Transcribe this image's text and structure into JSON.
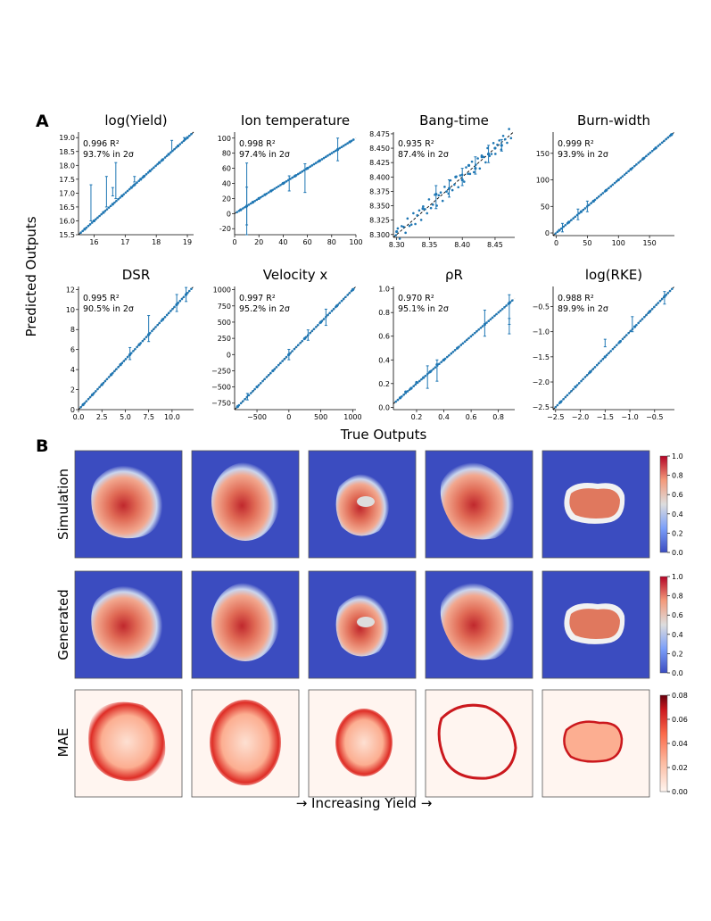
{
  "panel_labels": [
    "A",
    "B"
  ],
  "section_a": {
    "ylabel": "Predicted Outputs",
    "xlabel": "True Outputs"
  },
  "section_b": {
    "xlabel": "→ Increasing Yield →",
    "row_labels": [
      "Simulation",
      "Generated",
      "MAE"
    ]
  },
  "colors": {
    "points": "#1f77b4",
    "diagonal": "#000000",
    "coolwarm_low": "#3b4cc0",
    "coolwarm_mid": "#dddddd",
    "coolwarm_high": "#b40426",
    "reds_low": "#fff5f0",
    "reds_high": "#67000d"
  },
  "chart_data": [
    {
      "type": "scatter",
      "title": "log(Yield)",
      "r2": "0.996 R²",
      "coverage": "93.7% in 2σ",
      "xlim": [
        15.5,
        19.2
      ],
      "ylim": [
        15.5,
        19.2
      ],
      "xticks": [
        "16",
        "17",
        "18",
        "19"
      ],
      "xtick_values": [
        16,
        17,
        18,
        19
      ],
      "yticks": [
        "15.5",
        "16.0",
        "16.5",
        "17.0",
        "17.5",
        "18.0",
        "18.5",
        "19.0"
      ],
      "ytick_values": [
        15.5,
        16,
        16.5,
        17,
        17.5,
        18,
        18.5,
        19
      ],
      "points": [
        [
          15.7,
          15.7
        ],
        [
          16.0,
          16.0
        ],
        [
          16.3,
          16.3
        ],
        [
          16.6,
          16.6
        ],
        [
          16.9,
          16.9
        ],
        [
          17.2,
          17.2
        ],
        [
          17.5,
          17.5
        ],
        [
          17.8,
          17.8
        ],
        [
          18.1,
          18.1
        ],
        [
          18.4,
          18.4
        ],
        [
          18.7,
          18.7
        ],
        [
          19.0,
          19.0
        ],
        [
          17.3,
          17.3
        ],
        [
          17.6,
          17.6
        ],
        [
          18.2,
          18.2
        ]
      ],
      "errorbars": [
        [
          15.9,
          16.0,
          17.3
        ],
        [
          16.4,
          16.5,
          17.6
        ],
        [
          16.7,
          16.8,
          18.1
        ],
        [
          16.6,
          16.9,
          17.2
        ],
        [
          17.3,
          17.4,
          17.6
        ],
        [
          18.5,
          18.5,
          18.9
        ],
        [
          18.9,
          18.9,
          19.0
        ]
      ]
    },
    {
      "type": "scatter",
      "title": "Ion temperature",
      "r2": "0.998 R²",
      "coverage": "97.4% in 2σ",
      "xlim": [
        0,
        100
      ],
      "ylim": [
        -28,
        108
      ],
      "xticks": [
        "0",
        "20",
        "40",
        "60",
        "80",
        "100"
      ],
      "xtick_values": [
        0,
        20,
        40,
        60,
        80,
        100
      ],
      "yticks": [
        "-20",
        "0",
        "20",
        "40",
        "60",
        "80",
        "100"
      ],
      "ytick_values": [
        -20,
        0,
        20,
        40,
        60,
        80,
        100
      ],
      "points": [
        [
          5,
          5
        ],
        [
          10,
          10
        ],
        [
          15,
          15
        ],
        [
          20,
          20
        ],
        [
          25,
          25
        ],
        [
          30,
          30
        ],
        [
          40,
          40
        ],
        [
          50,
          50
        ],
        [
          60,
          60
        ],
        [
          70,
          70
        ],
        [
          85,
          85
        ],
        [
          95,
          95
        ]
      ],
      "errorbars": [
        [
          10,
          -28,
          67
        ],
        [
          10,
          -15,
          35
        ],
        [
          45,
          30,
          50
        ],
        [
          58,
          28,
          66
        ],
        [
          85,
          70,
          100
        ]
      ]
    },
    {
      "type": "scatter",
      "title": "Bang-time",
      "r2": "0.935 R²",
      "coverage": "87.4% in 2σ",
      "xlim": [
        8.295,
        8.48
      ],
      "ylim": [
        8.295,
        8.478
      ],
      "xticks": [
        "8.30",
        "8.35",
        "8.40",
        "8.45"
      ],
      "xtick_values": [
        8.3,
        8.35,
        8.4,
        8.45
      ],
      "yticks": [
        "8.300",
        "8.325",
        "8.350",
        "8.375",
        "8.400",
        "8.425",
        "8.450",
        "8.475"
      ],
      "ytick_values": [
        8.3,
        8.325,
        8.35,
        8.375,
        8.4,
        8.425,
        8.45,
        8.475
      ],
      "points": [
        [
          8.3,
          8.305
        ],
        [
          8.34,
          8.345
        ],
        [
          8.36,
          8.37
        ],
        [
          8.38,
          8.38
        ],
        [
          8.39,
          8.4
        ],
        [
          8.4,
          8.395
        ],
        [
          8.41,
          8.42
        ],
        [
          8.42,
          8.415
        ],
        [
          8.43,
          8.435
        ],
        [
          8.44,
          8.44
        ],
        [
          8.45,
          8.45
        ],
        [
          8.46,
          8.455
        ]
      ],
      "errorbars": [
        [
          8.36,
          8.345,
          8.385
        ],
        [
          8.38,
          8.365,
          8.395
        ],
        [
          8.4,
          8.385,
          8.415
        ],
        [
          8.42,
          8.405,
          8.435
        ],
        [
          8.44,
          8.425,
          8.455
        ],
        [
          8.46,
          8.445,
          8.465
        ]
      ]
    },
    {
      "type": "scatter",
      "title": "Burn-width",
      "r2": "0.999 R²",
      "coverage": "93.9% in 2σ",
      "xlim": [
        -5,
        190
      ],
      "ylim": [
        -5,
        190
      ],
      "xticks": [
        "0",
        "50",
        "100",
        "150"
      ],
      "xtick_values": [
        0,
        50,
        100,
        150
      ],
      "yticks": [
        "0",
        "50",
        "100",
        "150"
      ],
      "ytick_values": [
        0,
        50,
        100,
        150
      ],
      "points": [
        [
          5,
          5
        ],
        [
          20,
          20
        ],
        [
          40,
          40
        ],
        [
          60,
          60
        ],
        [
          80,
          80
        ],
        [
          100,
          100
        ],
        [
          120,
          120
        ],
        [
          140,
          140
        ],
        [
          160,
          160
        ],
        [
          185,
          185
        ]
      ],
      "errorbars": [
        [
          35,
          25,
          45
        ],
        [
          50,
          40,
          60
        ],
        [
          10,
          2,
          18
        ]
      ]
    },
    {
      "type": "scatter",
      "title": "DSR",
      "r2": "0.995 R²",
      "coverage": "90.5% in 2σ",
      "xlim": [
        0,
        12.3
      ],
      "ylim": [
        0,
        12.3
      ],
      "xticks": [
        "0.0",
        "2.5",
        "5.0",
        "7.5",
        "10.0"
      ],
      "xtick_values": [
        0,
        2.5,
        5,
        7.5,
        10
      ],
      "yticks": [
        "0",
        "2",
        "4",
        "6",
        "8",
        "10",
        "12"
      ],
      "ytick_values": [
        0,
        2,
        4,
        6,
        8,
        10,
        12
      ],
      "points": [
        [
          0.5,
          0.5
        ],
        [
          1.5,
          1.5
        ],
        [
          2.5,
          2.5
        ],
        [
          3.5,
          3.5
        ],
        [
          4.5,
          4.5
        ],
        [
          5.5,
          5.5
        ],
        [
          6.5,
          6.5
        ],
        [
          7.5,
          7.5
        ],
        [
          9,
          9
        ],
        [
          10.5,
          10.5
        ],
        [
          11.5,
          11.5
        ]
      ],
      "errorbars": [
        [
          7.5,
          6.8,
          9.4
        ],
        [
          10.5,
          9.8,
          11.5
        ],
        [
          11.5,
          10.8,
          12.2
        ],
        [
          5.5,
          5.0,
          6.2
        ]
      ]
    },
    {
      "type": "scatter",
      "title": "Velocity x",
      "r2": "0.997 R²",
      "coverage": "95.2% in 2σ",
      "xlim": [
        -850,
        1050
      ],
      "ylim": [
        -850,
        1050
      ],
      "xticks": [
        "−500",
        "0",
        "500",
        "1000"
      ],
      "xtick_values": [
        -500,
        0,
        500,
        1000
      ],
      "yticks": [
        "−750",
        "−500",
        "−250",
        "0",
        "250",
        "500",
        "750",
        "1000"
      ],
      "ytick_values": [
        -750,
        -500,
        -250,
        0,
        250,
        500,
        750,
        1000
      ],
      "points": [
        [
          -800,
          -800
        ],
        [
          -500,
          -500
        ],
        [
          -250,
          -250
        ],
        [
          0,
          0
        ],
        [
          250,
          250
        ],
        [
          500,
          500
        ],
        [
          750,
          750
        ],
        [
          1000,
          1000
        ]
      ],
      "errorbars": [
        [
          -650,
          -700,
          -600
        ],
        [
          0,
          -80,
          80
        ],
        [
          300,
          220,
          380
        ],
        [
          580,
          450,
          700
        ]
      ]
    },
    {
      "type": "scatter",
      "title": "ρR",
      "r2": "0.970 R²",
      "coverage": "95.1% in 2σ",
      "xlim": [
        0.03,
        0.92
      ],
      "ylim": [
        -0.02,
        1.02
      ],
      "xticks": [
        "0.2",
        "0.4",
        "0.6",
        "0.8"
      ],
      "xtick_values": [
        0.2,
        0.4,
        0.6,
        0.8
      ],
      "yticks": [
        "0.0",
        "0.2",
        "0.4",
        "0.6",
        "0.8",
        "1.0"
      ],
      "ytick_values": [
        0,
        0.2,
        0.4,
        0.6,
        0.8,
        1
      ],
      "points": [
        [
          0.08,
          0.08
        ],
        [
          0.12,
          0.13
        ],
        [
          0.16,
          0.16
        ],
        [
          0.2,
          0.21
        ],
        [
          0.25,
          0.25
        ],
        [
          0.3,
          0.3
        ],
        [
          0.35,
          0.36
        ],
        [
          0.4,
          0.4
        ],
        [
          0.5,
          0.5
        ],
        [
          0.7,
          0.7
        ],
        [
          0.88,
          0.88
        ]
      ],
      "errorbars": [
        [
          0.7,
          0.6,
          0.82
        ],
        [
          0.88,
          0.7,
          0.95
        ],
        [
          0.88,
          0.62,
          0.75
        ],
        [
          0.35,
          0.22,
          0.4
        ],
        [
          0.28,
          0.16,
          0.35
        ]
      ]
    },
    {
      "type": "scatter",
      "title": "log(RKE)",
      "r2": "0.988 R²",
      "coverage": "89.9% in 2σ",
      "xlim": [
        -2.55,
        -0.1
      ],
      "ylim": [
        -2.55,
        -0.1
      ],
      "xticks": [
        "−2.5",
        "−2.0",
        "−1.5",
        "−1.0",
        "−0.5"
      ],
      "xtick_values": [
        -2.5,
        -2,
        -1.5,
        -1,
        -0.5
      ],
      "yticks": [
        "−2.5",
        "−2.0",
        "−1.5",
        "−1.0",
        "−0.5"
      ],
      "ytick_values": [
        -2.5,
        -2,
        -1.5,
        -1,
        -0.5
      ],
      "points": [
        [
          -2.4,
          -2.4
        ],
        [
          -2.1,
          -2.1
        ],
        [
          -1.8,
          -1.8
        ],
        [
          -1.5,
          -1.5
        ],
        [
          -1.2,
          -1.2
        ],
        [
          -0.9,
          -0.9
        ],
        [
          -0.6,
          -0.6
        ],
        [
          -0.3,
          -0.3
        ]
      ],
      "errorbars": [
        [
          -0.3,
          -0.45,
          -0.2
        ],
        [
          -1.5,
          -1.3,
          -1.15
        ],
        [
          -0.95,
          -1.0,
          -0.7
        ]
      ]
    },
    {
      "type": "heatmap",
      "title": "Simulation",
      "columns": 5,
      "colorbar": {
        "min": 0.0,
        "max": 1.0,
        "ticks": [
          "0.0",
          "0.2",
          "0.4",
          "0.6",
          "0.8",
          "1.0"
        ]
      }
    },
    {
      "type": "heatmap",
      "title": "Generated",
      "columns": 5,
      "colorbar": {
        "min": 0.0,
        "max": 1.0,
        "ticks": [
          "0.0",
          "0.2",
          "0.4",
          "0.6",
          "0.8",
          "1.0"
        ]
      }
    },
    {
      "type": "heatmap",
      "title": "MAE",
      "columns": 5,
      "colorbar": {
        "min": 0.0,
        "max": 0.08,
        "ticks": [
          "0.00",
          "0.02",
          "0.04",
          "0.06",
          "0.08"
        ]
      }
    }
  ]
}
